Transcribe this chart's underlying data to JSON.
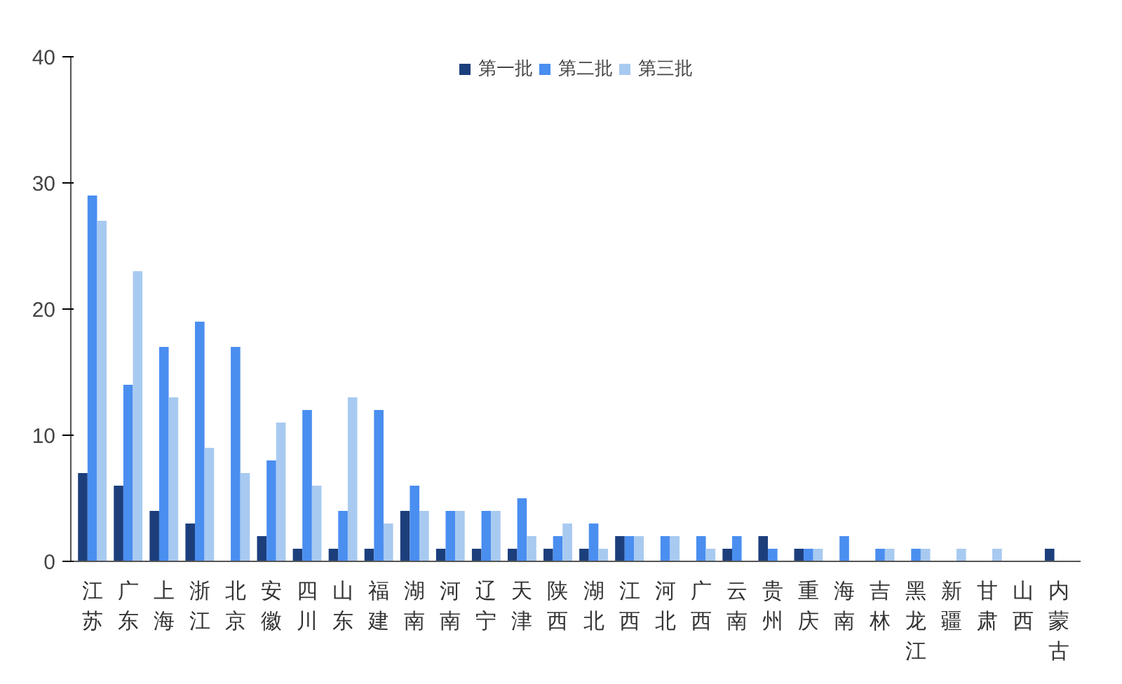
{
  "chart_data": {
    "type": "bar",
    "categories": [
      "江苏",
      "广东",
      "上海",
      "浙江",
      "北京",
      "安徽",
      "四川",
      "山东",
      "福建",
      "湖南",
      "河南",
      "辽宁",
      "天津",
      "陕西",
      "湖北",
      "江西",
      "河北",
      "广西",
      "云南",
      "贵州",
      "重庆",
      "海南",
      "吉林",
      "黑龙江",
      "新疆",
      "甘肃",
      "山西",
      "内蒙古"
    ],
    "series": [
      {
        "name": "第一批",
        "color": "#1c3f7c",
        "values": [
          7,
          6,
          4,
          3,
          0,
          2,
          1,
          1,
          1,
          4,
          1,
          1,
          1,
          1,
          1,
          2,
          0,
          0,
          1,
          2,
          1,
          0,
          0,
          0,
          0,
          0,
          0,
          1
        ]
      },
      {
        "name": "第二批",
        "color": "#4a8ef0",
        "values": [
          29,
          14,
          17,
          19,
          17,
          8,
          12,
          4,
          12,
          6,
          4,
          4,
          5,
          2,
          3,
          2,
          2,
          2,
          2,
          1,
          1,
          2,
          1,
          1,
          0,
          0,
          0,
          0
        ]
      },
      {
        "name": "第三批",
        "color": "#a8caf0",
        "values": [
          27,
          23,
          13,
          9,
          7,
          11,
          6,
          13,
          3,
          4,
          4,
          4,
          2,
          3,
          1,
          2,
          2,
          1,
          0,
          0,
          1,
          0,
          1,
          1,
          1,
          1,
          0,
          0
        ]
      }
    ],
    "ylim": [
      0,
      40
    ],
    "yticks": [
      0,
      10,
      20,
      30,
      40
    ],
    "grid": false,
    "legend": "top"
  }
}
